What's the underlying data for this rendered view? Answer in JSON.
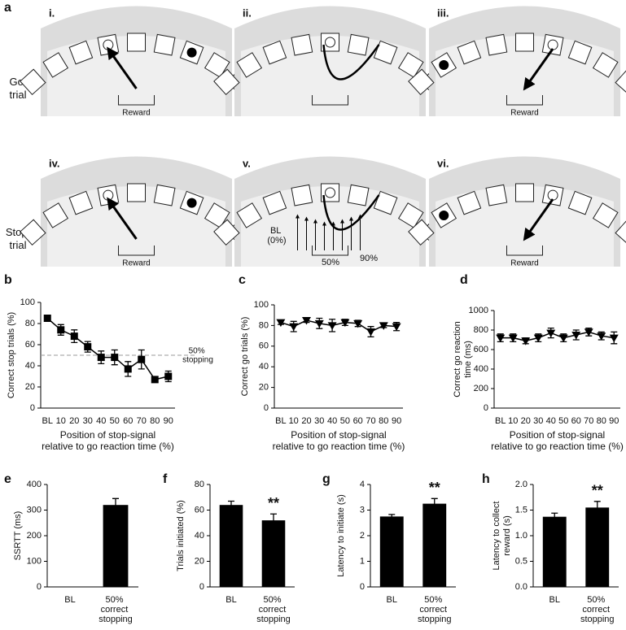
{
  "schematic": {
    "panel_label": "a",
    "row_labels": [
      "Go trial",
      "Stop trial"
    ],
    "panels": [
      {
        "label": "i.",
        "reward": "Reward"
      },
      {
        "label": "ii."
      },
      {
        "label": "iii.",
        "reward": "Reward"
      },
      {
        "label": "iv.",
        "reward": "Reward"
      },
      {
        "label": "v.",
        "cues": [
          "BL (0%)",
          "50%",
          "90%"
        ]
      },
      {
        "label": "vi.",
        "reward": "Reward"
      }
    ]
  },
  "chart_data": [
    {
      "type": "line",
      "panel_label": "b",
      "y_label": [
        "Correct stop trials (%)"
      ],
      "x_label": [
        "Position of stop-signal",
        "relative to go reaction time (%)"
      ],
      "categories": [
        "BL",
        "10",
        "20",
        "30",
        "40",
        "50",
        "60",
        "70",
        "80",
        "90"
      ],
      "series": [
        {
          "color": "#000000",
          "marker": "square",
          "values": [
            85,
            74,
            68,
            58,
            48,
            48,
            37,
            46,
            27,
            30
          ],
          "errors": [
            3,
            5,
            6,
            5,
            6,
            7,
            7,
            9,
            2,
            5
          ]
        }
      ],
      "ylim": [
        0,
        100
      ],
      "yticks": [
        0,
        20,
        40,
        60,
        80,
        100
      ],
      "reference_line": {
        "value": 50,
        "label": "50% stopping",
        "style": "dashed"
      }
    },
    {
      "type": "line",
      "panel_label": "c",
      "y_label": [
        "Correct go trials (%)"
      ],
      "x_label": [
        "Position of stop-signal",
        "relative to go reaction time (%)"
      ],
      "categories": [
        "BL",
        "10",
        "20",
        "30",
        "40",
        "50",
        "60",
        "70",
        "80",
        "90"
      ],
      "series": [
        {
          "color": "#000000",
          "marker": "triangle-down",
          "values": [
            83,
            79,
            85,
            82,
            80,
            83,
            82,
            74,
            80,
            79
          ],
          "errors": [
            2,
            5,
            2,
            5,
            6,
            3,
            3,
            5,
            2,
            4
          ]
        }
      ],
      "ylim": [
        0,
        100
      ],
      "yticks": [
        0,
        20,
        40,
        60,
        80,
        100
      ]
    },
    {
      "type": "line",
      "panel_label": "d",
      "y_label": [
        "Correct go reaction",
        "time (ms)"
      ],
      "x_label": [
        "Position of stop-signal",
        "relative to go reaction time (%)"
      ],
      "categories": [
        "BL",
        "10",
        "20",
        "30",
        "40",
        "50",
        "60",
        "70",
        "80",
        "90"
      ],
      "series": [
        {
          "color": "#000000",
          "marker": "triangle-down",
          "values": [
            720,
            720,
            690,
            720,
            770,
            720,
            750,
            780,
            740,
            720
          ],
          "errors": [
            40,
            40,
            30,
            40,
            50,
            40,
            50,
            40,
            40,
            60
          ]
        }
      ],
      "ylim": [
        0,
        1000
      ],
      "yticks": [
        0,
        200,
        400,
        600,
        800,
        1000
      ]
    },
    {
      "type": "bar",
      "panel_label": "e",
      "y_label": [
        "SSRTT (ms)"
      ],
      "categories": [
        "BL",
        "50% correct stopping"
      ],
      "series": [
        {
          "color": "#000000",
          "values": [
            null,
            320
          ],
          "errors": [
            null,
            25
          ]
        }
      ],
      "ylim": [
        0,
        400
      ],
      "yticks": [
        0,
        100,
        200,
        300,
        400
      ]
    },
    {
      "type": "bar",
      "panel_label": "f",
      "y_label": [
        "Trials initiated (%)"
      ],
      "categories": [
        "BL",
        "50% correct stopping"
      ],
      "series": [
        {
          "color": "#000000",
          "values": [
            64,
            52
          ],
          "errors": [
            3,
            5
          ]
        }
      ],
      "ylim": [
        0,
        80
      ],
      "yticks": [
        0,
        20,
        40,
        60,
        80
      ],
      "significance": [
        null,
        "**"
      ]
    },
    {
      "type": "bar",
      "panel_label": "g",
      "y_label": [
        "Latency to initiate (s)"
      ],
      "categories": [
        "BL",
        "50% correct stopping"
      ],
      "series": [
        {
          "color": "#000000",
          "values": [
            2.75,
            3.25
          ],
          "errors": [
            0.08,
            0.2
          ]
        }
      ],
      "ylim": [
        0,
        4
      ],
      "yticks": [
        0,
        1,
        2,
        3,
        4
      ],
      "significance": [
        null,
        "**"
      ]
    },
    {
      "type": "bar",
      "panel_label": "h",
      "y_label": [
        "Latency to collect",
        "reward (s)"
      ],
      "categories": [
        "BL",
        "50% correct stopping"
      ],
      "series": [
        {
          "color": "#000000",
          "values": [
            1.37,
            1.55
          ],
          "errors": [
            0.07,
            0.12
          ]
        }
      ],
      "ylim": [
        0,
        2
      ],
      "yticks": [
        {
          "value": 0,
          "label": "0.0"
        },
        0.5,
        {
          "value": 1,
          "label": "1.0"
        },
        1.5,
        {
          "value": 2,
          "label": "2.0"
        }
      ],
      "significance": [
        null,
        "**"
      ]
    }
  ]
}
